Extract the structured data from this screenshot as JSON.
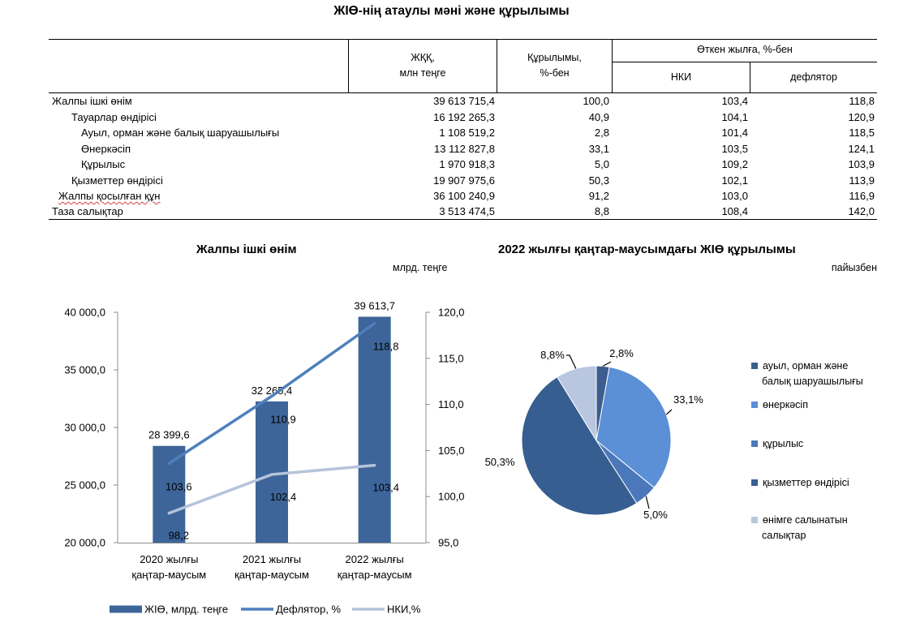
{
  "title": "ЖІӨ-нің атаулы мәні және құрылымы",
  "table": {
    "headers": {
      "gdp": [
        "ЖҚҚ,",
        "млн теңге"
      ],
      "structure": [
        "Құрылымы,",
        "%-бен"
      ],
      "prev_year": "Өткен жылға, %-бен",
      "nki": "НКИ",
      "deflator": "дефлятор"
    },
    "rows": [
      {
        "name": "Жалпы ішкі өнім",
        "gdp": "39 613 715,4",
        "structure": "100,0",
        "nki": "103,4",
        "deflator": "118,8"
      },
      {
        "name": "Тауарлар өндірісі",
        "gdp": "16 192 265,3",
        "structure": "40,9",
        "nki": "104,1",
        "deflator": "120,9"
      },
      {
        "name": "Ауыл, орман және балық шаруашылығы",
        "gdp": "1 108 519,2",
        "structure": "2,8",
        "nki": "101,4",
        "deflator": "118,5"
      },
      {
        "name": "Өнеркәсіп",
        "gdp": "13 112 827,8",
        "structure": "33,1",
        "nki": "103,5",
        "deflator": "124,1"
      },
      {
        "name": "Құрылыс",
        "gdp": "1 970 918,3",
        "structure": "5,0",
        "nki": "109,2",
        "deflator": "103,9"
      },
      {
        "name": "Қызметтер өндірісі",
        "gdp": "19 907 975,6",
        "structure": "50,3",
        "nki": "102,1",
        "deflator": "113,9"
      },
      {
        "name": "Жалпы қосылған құн",
        "gdp": "36 100 240,9",
        "structure": "91,2",
        "nki": "103,0",
        "deflator": "116,9"
      },
      {
        "name": "Таза салықтар",
        "gdp": "3 513 474,5",
        "structure": "8,8",
        "nki": "108,4",
        "deflator": "142,0"
      }
    ]
  },
  "chart_data": [
    {
      "type": "bar",
      "title": "Жалпы ішкі өнім",
      "unit_label": "млрд. теңге",
      "categories": [
        [
          "2020 жылғы",
          "қаңтар-маусым"
        ],
        [
          "2021 жылғы",
          "қаңтар-маусым"
        ],
        [
          "2022 жылғы",
          "қаңтар-маусым"
        ]
      ],
      "series": [
        {
          "name": "ЖІӨ, млрд. теңге",
          "kind": "bar",
          "axis": "left",
          "values": [
            28399.6,
            32265.4,
            39613.7
          ],
          "labels": [
            "28 399,6",
            "32 265,4",
            "39 613,7"
          ],
          "color": "#3d6599"
        },
        {
          "name": "Дефлятор, %",
          "kind": "line",
          "axis": "right",
          "values": [
            103.6,
            110.9,
            118.8
          ],
          "labels": [
            "103,6",
            "110,9",
            "118,8"
          ],
          "color": "#4f7fbd"
        },
        {
          "name": "НКИ,%",
          "kind": "line",
          "axis": "right",
          "values": [
            98.2,
            102.4,
            103.4
          ],
          "labels": [
            "98,2",
            "102,4",
            "103,4"
          ],
          "color": "#b6c3dc"
        }
      ],
      "y_left": {
        "min": 20000,
        "max": 40000,
        "ticks": [
          "20 000,0",
          "25 000,0",
          "30 000,0",
          "35 000,0",
          "40 000,0"
        ]
      },
      "y_right": {
        "min": 95,
        "max": 120,
        "ticks": [
          "95,0",
          "100,0",
          "105,0",
          "110,0",
          "115,0",
          "120,0"
        ]
      },
      "legend_position": "bottom",
      "grid": false
    },
    {
      "type": "pie",
      "title": "2022 жылғы қаңтар-маусымдағы ЖІӨ құрылымы",
      "unit_label": "пайызбен",
      "slices": [
        {
          "name": [
            "ауыл, орман және",
            "балық шаруашылығы"
          ],
          "value": 2.8,
          "label": "2,8%",
          "color": "#3c5e8e"
        },
        {
          "name": [
            "өнеркәсіп"
          ],
          "value": 33.1,
          "label": "33,1%",
          "color": "#5b8fd6"
        },
        {
          "name": [
            "құрылыс"
          ],
          "value": 5.0,
          "label": "5,0%",
          "color": "#4b78ba"
        },
        {
          "name": [
            "қызметтер өндірісі"
          ],
          "value": 50.3,
          "label": "50,3%",
          "color": "#375e91"
        },
        {
          "name": [
            "өнімге салынатын",
            "салықтар"
          ],
          "value": 8.8,
          "label": "8,8%",
          "color": "#b9c6df"
        }
      ],
      "legend_position": "right"
    }
  ]
}
